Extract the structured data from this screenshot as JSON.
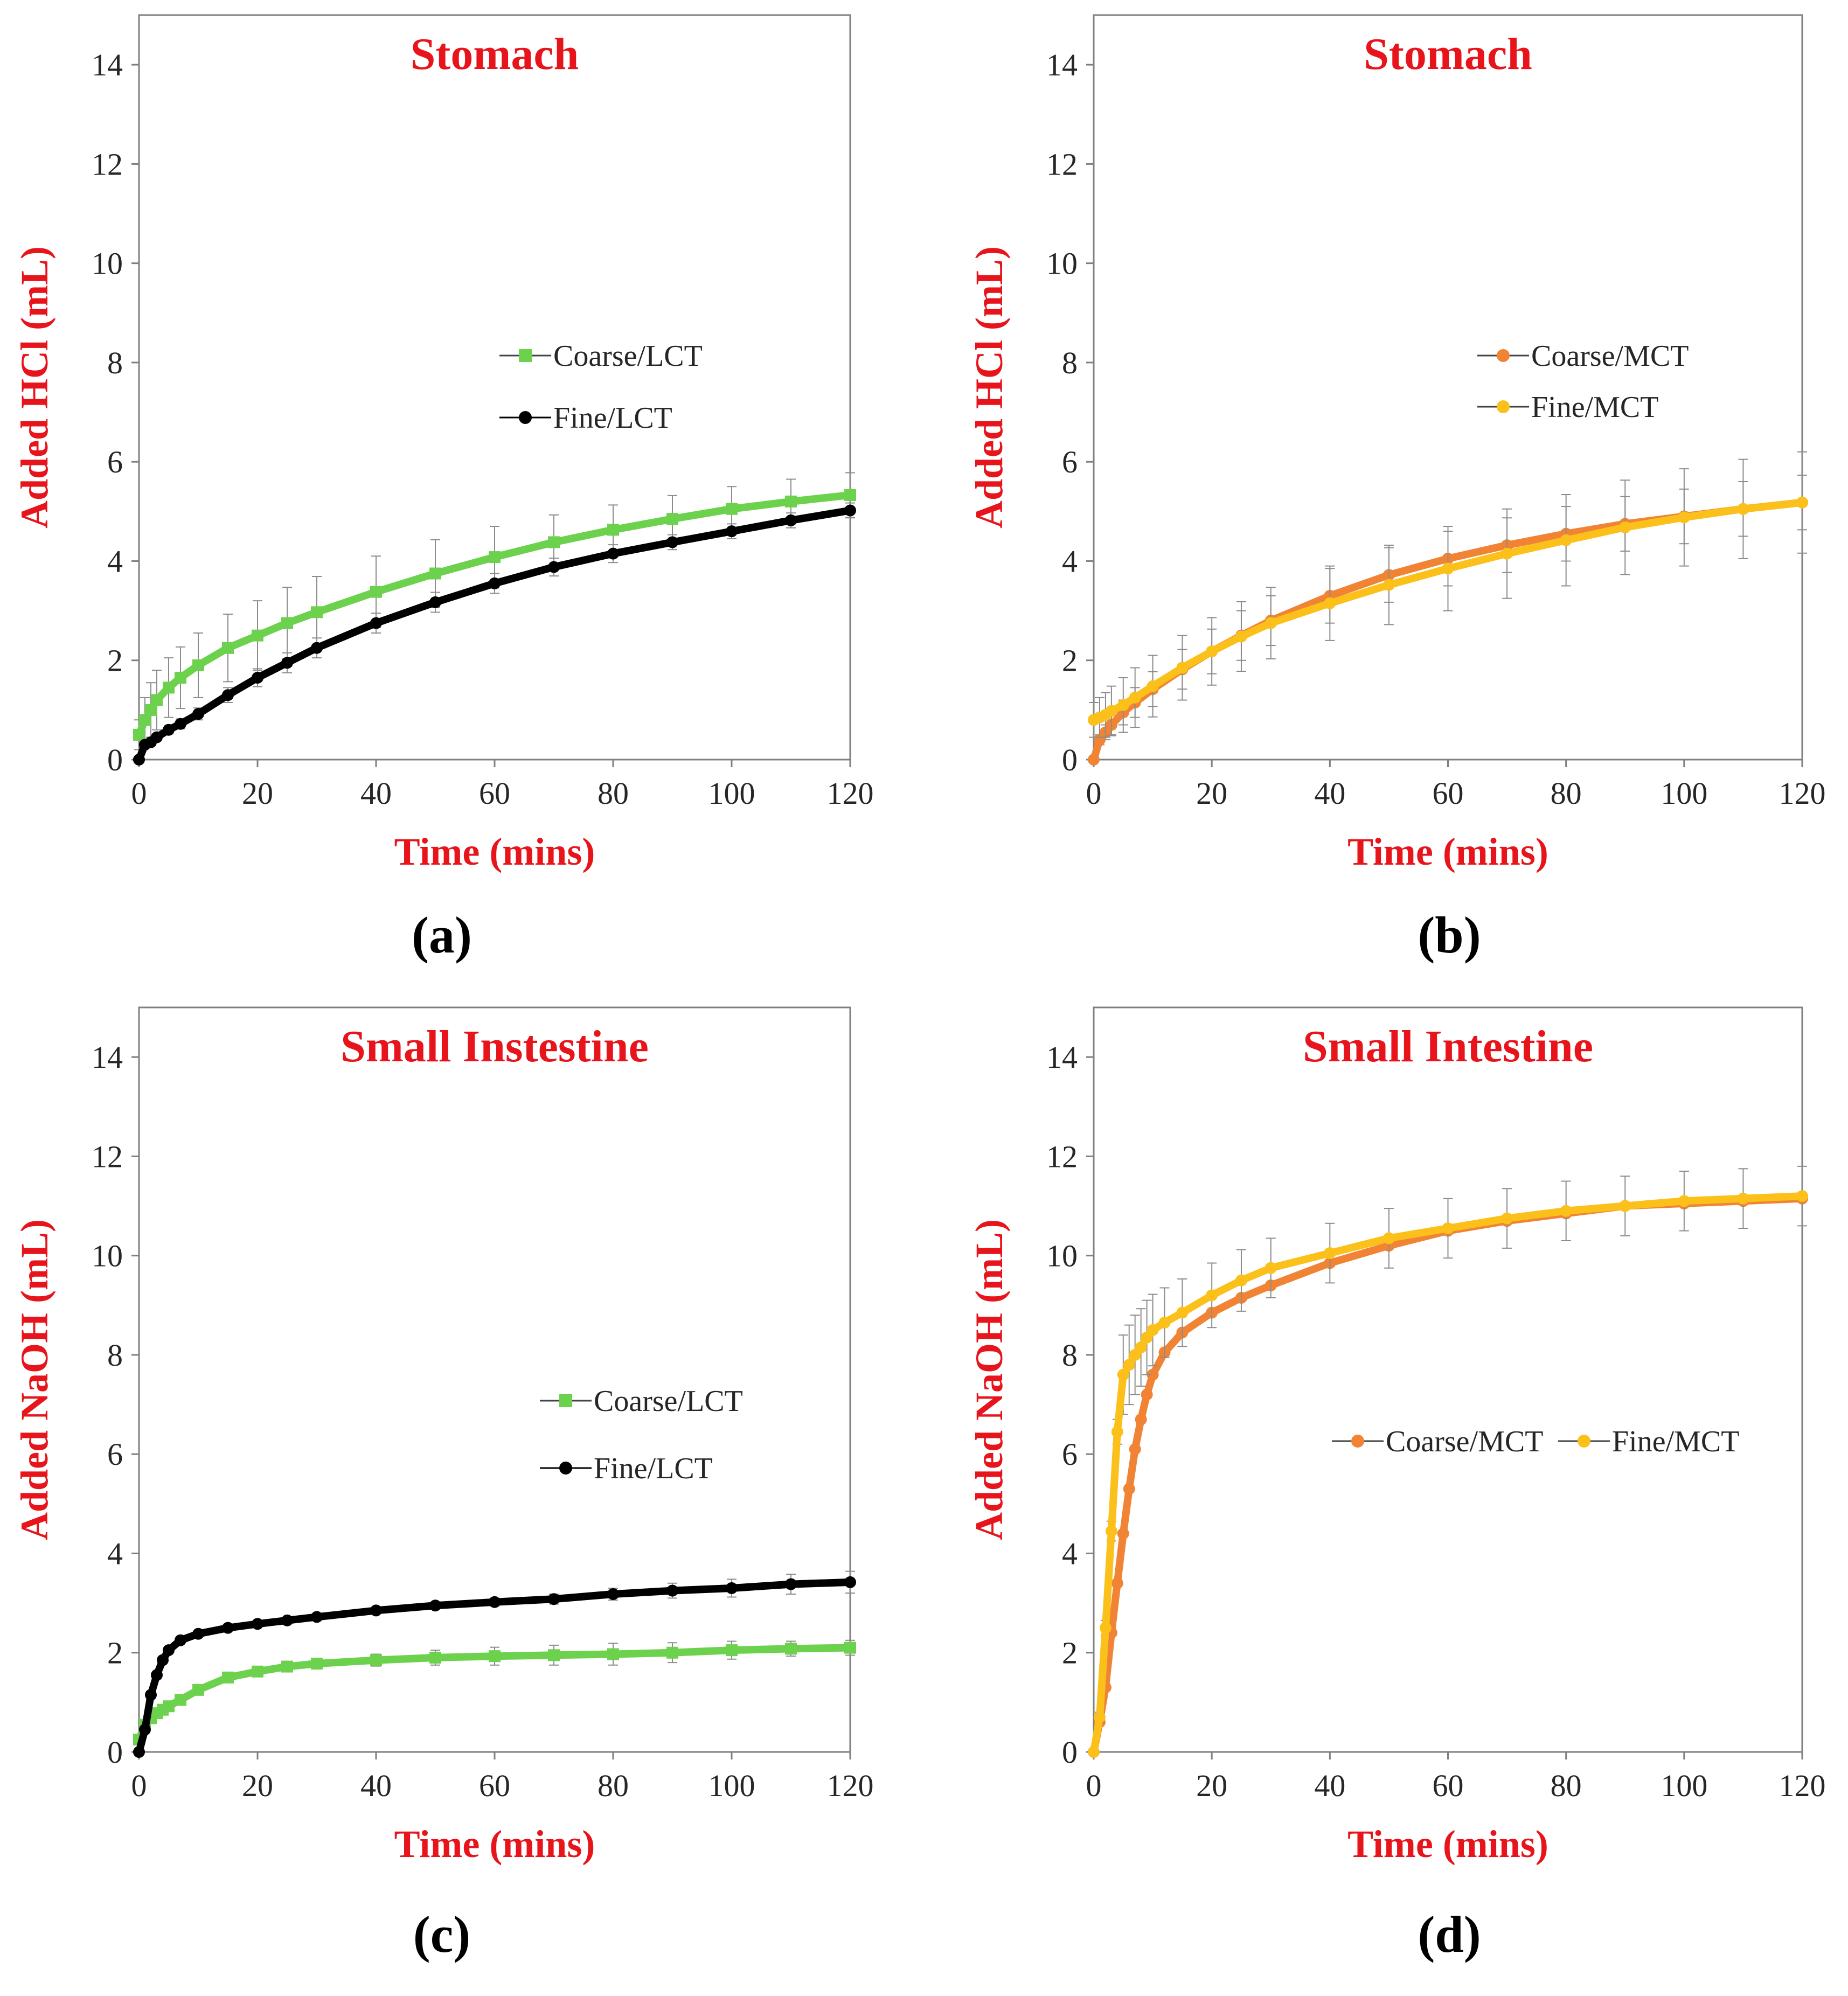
{
  "colors": {
    "title": "#e8141b",
    "axis_label": "#e8141b",
    "coarse_lct": "#6cd14c",
    "fine_lct": "#000000",
    "coarse_mct": "#f08434",
    "fine_mct": "#fbc01a",
    "error_bar": "#8c8c8c"
  },
  "chart_data": [
    {
      "type": "line",
      "panel": "(a)",
      "title": "Stomach",
      "xlabel": "Time (mins)",
      "ylabel": "Added HCl (mL)",
      "xlim": [
        0,
        120
      ],
      "ylim": [
        0,
        15
      ],
      "xticks": [
        0,
        20,
        40,
        60,
        80,
        100,
        120
      ],
      "yticks": [
        0,
        2,
        4,
        6,
        8,
        10,
        12,
        14
      ],
      "legend_position": "center-right",
      "x": [
        0,
        1,
        2,
        3,
        5,
        7,
        10,
        15,
        20,
        25,
        30,
        40,
        50,
        60,
        70,
        80,
        90,
        100,
        110,
        120
      ],
      "series": [
        {
          "name": "Coarse/LCT",
          "marker": "square",
          "color": "#6cd14c",
          "values": [
            0.5,
            0.8,
            1.0,
            1.2,
            1.45,
            1.65,
            1.9,
            2.25,
            2.5,
            2.75,
            2.97,
            3.38,
            3.75,
            4.08,
            4.38,
            4.63,
            4.85,
            5.05,
            5.2,
            5.33
          ],
          "error": [
            0.3,
            0.45,
            0.55,
            0.6,
            0.6,
            0.62,
            0.65,
            0.68,
            0.7,
            0.72,
            0.72,
            0.72,
            0.68,
            0.62,
            0.55,
            0.5,
            0.47,
            0.45,
            0.45,
            0.45
          ]
        },
        {
          "name": "Fine/LCT",
          "marker": "circle",
          "color": "#000000",
          "values": [
            0,
            0.3,
            0.35,
            0.45,
            0.6,
            0.72,
            0.92,
            1.3,
            1.65,
            1.95,
            2.25,
            2.75,
            3.17,
            3.55,
            3.88,
            4.15,
            4.38,
            4.6,
            4.82,
            5.02
          ],
          "error": [
            0,
            0.05,
            0.05,
            0.06,
            0.08,
            0.1,
            0.12,
            0.15,
            0.18,
            0.2,
            0.2,
            0.2,
            0.2,
            0.2,
            0.18,
            0.18,
            0.15,
            0.15,
            0.15,
            0.15
          ]
        }
      ]
    },
    {
      "type": "line",
      "panel": "(b)",
      "title": "Stomach",
      "xlabel": "Time (mins)",
      "ylabel": "Added HCl (mL)",
      "xlim": [
        0,
        120
      ],
      "ylim": [
        0,
        15
      ],
      "xticks": [
        0,
        20,
        40,
        60,
        80,
        100,
        120
      ],
      "yticks": [
        0,
        2,
        4,
        6,
        8,
        10,
        12,
        14
      ],
      "legend_position": "center-right",
      "x": [
        0,
        1,
        2,
        3,
        5,
        7,
        10,
        15,
        20,
        25,
        30,
        40,
        50,
        60,
        70,
        80,
        90,
        100,
        110,
        120
      ],
      "series": [
        {
          "name": "Coarse/MCT",
          "marker": "circle",
          "color": "#f08434",
          "values": [
            0,
            0.4,
            0.55,
            0.7,
            0.95,
            1.15,
            1.42,
            1.82,
            2.18,
            2.5,
            2.8,
            3.3,
            3.72,
            4.05,
            4.32,
            4.55,
            4.75,
            4.9,
            5.05,
            5.18
          ],
          "error": [
            0,
            0.1,
            0.15,
            0.2,
            0.25,
            0.3,
            0.35,
            0.4,
            0.45,
            0.5,
            0.5,
            0.55,
            0.55,
            0.55,
            0.55,
            0.55,
            0.55,
            0.55,
            0.55,
            0.55
          ]
        },
        {
          "name": "Fine/MCT",
          "marker": "circle",
          "color": "#fbc01a",
          "values": [
            0.8,
            0.85,
            0.9,
            0.98,
            1.1,
            1.25,
            1.48,
            1.85,
            2.18,
            2.48,
            2.75,
            3.15,
            3.52,
            3.85,
            4.15,
            4.42,
            4.68,
            4.88,
            5.05,
            5.18
          ],
          "error": [
            0.35,
            0.4,
            0.45,
            0.5,
            0.55,
            0.6,
            0.62,
            0.65,
            0.68,
            0.7,
            0.72,
            0.75,
            0.8,
            0.85,
            0.9,
            0.92,
            0.95,
            0.98,
            1.0,
            1.02
          ]
        }
      ]
    },
    {
      "type": "line",
      "panel": "(c)",
      "title": "Small Instestine",
      "xlabel": "Time (mins)",
      "ylabel": "Added NaOH (mL)",
      "xlim": [
        0,
        120
      ],
      "ylim": [
        0,
        15
      ],
      "xticks": [
        0,
        20,
        40,
        60,
        80,
        100,
        120
      ],
      "yticks": [
        0,
        2,
        4,
        6,
        8,
        10,
        12,
        14
      ],
      "legend_position": "center-right",
      "x": [
        0,
        1,
        2,
        3,
        4,
        5,
        7,
        10,
        15,
        20,
        25,
        30,
        40,
        50,
        60,
        70,
        80,
        90,
        100,
        110,
        120
      ],
      "series": [
        {
          "name": "Coarse/LCT",
          "marker": "square",
          "color": "#6cd14c",
          "values": [
            0.25,
            0.55,
            0.68,
            0.78,
            0.85,
            0.92,
            1.05,
            1.25,
            1.5,
            1.62,
            1.72,
            1.78,
            1.85,
            1.9,
            1.93,
            1.95,
            1.97,
            2.0,
            2.05,
            2.08,
            2.1
          ],
          "error": [
            0,
            0.05,
            0.06,
            0.07,
            0.08,
            0.08,
            0.08,
            0.08,
            0.08,
            0.1,
            0.1,
            0.1,
            0.12,
            0.15,
            0.18,
            0.2,
            0.22,
            0.2,
            0.18,
            0.15,
            0.15
          ]
        },
        {
          "name": "Fine/LCT",
          "marker": "circle",
          "color": "#000000",
          "values": [
            0,
            0.45,
            1.15,
            1.55,
            1.85,
            2.05,
            2.25,
            2.38,
            2.5,
            2.58,
            2.65,
            2.72,
            2.85,
            2.95,
            3.02,
            3.08,
            3.18,
            3.25,
            3.3,
            3.38,
            3.42
          ],
          "error": [
            0,
            0.05,
            0.05,
            0.05,
            0.05,
            0.05,
            0.05,
            0.05,
            0.05,
            0.05,
            0.05,
            0.05,
            0.06,
            0.06,
            0.08,
            0.1,
            0.12,
            0.15,
            0.18,
            0.2,
            0.22
          ]
        }
      ]
    },
    {
      "type": "line",
      "panel": "(d)",
      "title": "Small Intestine",
      "xlabel": "Time (mins)",
      "ylabel": "Added NaOH (mL)",
      "xlim": [
        0,
        120
      ],
      "ylim": [
        0,
        15
      ],
      "xticks": [
        0,
        20,
        40,
        60,
        80,
        100,
        120
      ],
      "yticks": [
        0,
        2,
        4,
        6,
        8,
        10,
        12,
        14
      ],
      "legend_position": "center-right",
      "x": [
        0,
        1,
        2,
        3,
        4,
        5,
        6,
        7,
        8,
        9,
        10,
        12,
        15,
        20,
        25,
        30,
        40,
        50,
        60,
        70,
        80,
        90,
        100,
        110,
        120
      ],
      "series": [
        {
          "name": "Coarse/MCT",
          "marker": "circle",
          "color": "#f08434",
          "values": [
            0,
            0.6,
            1.3,
            2.4,
            3.4,
            4.4,
            5.3,
            6.1,
            6.7,
            7.2,
            7.6,
            8.05,
            8.45,
            8.85,
            9.15,
            9.4,
            9.85,
            10.2,
            10.5,
            10.7,
            10.85,
            11.0,
            11.05,
            11.1,
            11.15
          ],
          "error": [
            0,
            0.05,
            0.05,
            0.05,
            0.05,
            0.05,
            0.05,
            0.05,
            0.05,
            0.05,
            0.05,
            0.05,
            0.05,
            0.05,
            0.05,
            0.05,
            0.05,
            0.05,
            0.05,
            0.05,
            0.05,
            0.05,
            0.05,
            0.05,
            0.05
          ]
        },
        {
          "name": "Fine/MCT",
          "marker": "circle",
          "color": "#fbc01a",
          "values": [
            0,
            0.7,
            2.5,
            4.45,
            6.45,
            7.6,
            7.8,
            8.0,
            8.15,
            8.35,
            8.5,
            8.65,
            8.85,
            9.2,
            9.5,
            9.75,
            10.05,
            10.35,
            10.55,
            10.75,
            10.9,
            11.0,
            11.1,
            11.15,
            11.2
          ],
          "error": [
            0,
            0.1,
            0.15,
            0.2,
            0.25,
            0.8,
            0.8,
            0.8,
            0.78,
            0.75,
            0.72,
            0.7,
            0.68,
            0.65,
            0.62,
            0.6,
            0.6,
            0.6,
            0.6,
            0.6,
            0.6,
            0.6,
            0.6,
            0.6,
            0.6
          ]
        }
      ]
    }
  ]
}
